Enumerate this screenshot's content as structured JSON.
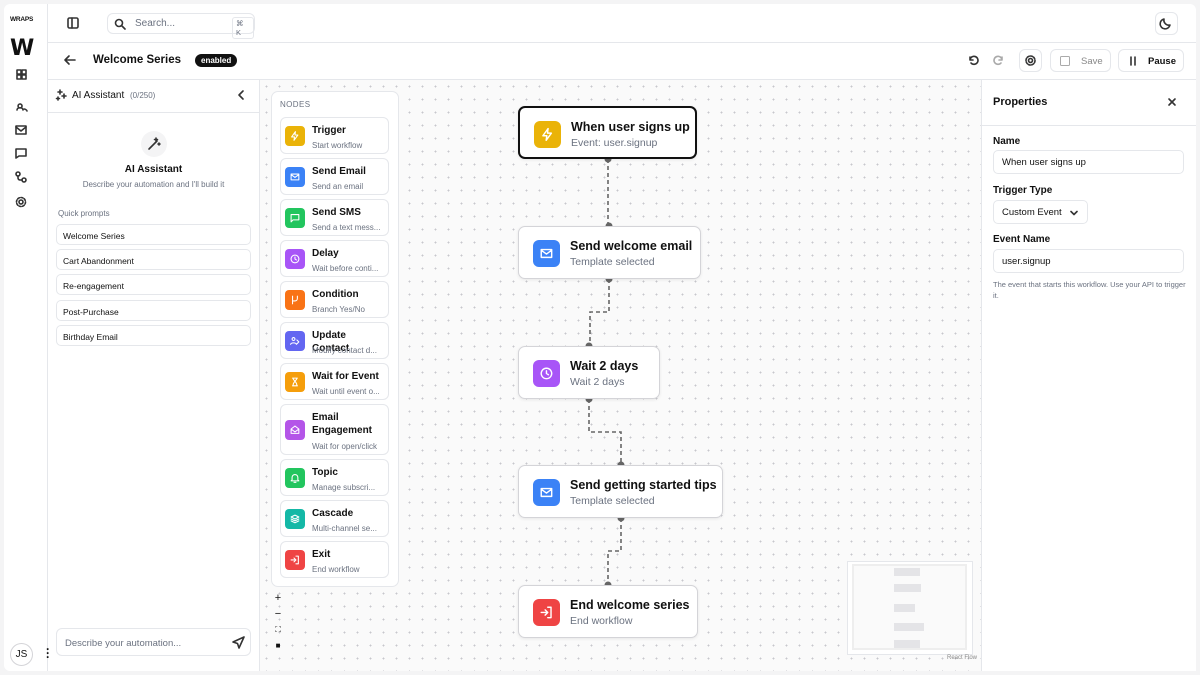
{
  "brand": {
    "logo_text": "WRAPS",
    "logo_mark": "W"
  },
  "search": {
    "placeholder": "Search...",
    "shortcut": "⌘ K"
  },
  "header": {
    "title": "Welcome Series",
    "status": "enabled",
    "save": "Save",
    "pause": "Pause"
  },
  "ai_panel": {
    "title": "AI Assistant",
    "counter": "(0/250)",
    "heading": "AI Assistant",
    "description": "Describe your automation and I'll build it",
    "quick_prompts_label": "Quick prompts",
    "quick_prompts": [
      "Welcome Series",
      "Cart Abandonment",
      "Re-engagement",
      "Post-Purchase",
      "Birthday Email"
    ],
    "input_placeholder": "Describe your automation..."
  },
  "user": {
    "initials": "JS"
  },
  "palette": {
    "label": "NODES",
    "items": [
      {
        "title": "Trigger",
        "description": "Start workflow"
      },
      {
        "title": "Send Email",
        "description": "Send an email"
      },
      {
        "title": "Send SMS",
        "description": "Send a text mess..."
      },
      {
        "title": "Delay",
        "description": "Wait before conti..."
      },
      {
        "title": "Condition",
        "description": "Branch Yes/No"
      },
      {
        "title": "Update Contact",
        "description": "Modify contact d..."
      },
      {
        "title": "Wait for Event",
        "description": "Wait until event o..."
      },
      {
        "title": "Email Engagement",
        "description": "Wait for open/click"
      },
      {
        "title": "Topic",
        "description": "Manage subscri..."
      },
      {
        "title": "Cascade",
        "description": "Multi-channel se..."
      },
      {
        "title": "Exit",
        "description": "End workflow"
      }
    ]
  },
  "workflow": {
    "nodes": [
      {
        "title": "When user signs up",
        "subtitle": "Event: user.signup"
      },
      {
        "title": "Send welcome email",
        "subtitle": "Template selected"
      },
      {
        "title": "Wait 2 days",
        "subtitle": "Wait 2 days"
      },
      {
        "title": "Send getting started tips",
        "subtitle": "Template selected"
      },
      {
        "title": "End welcome series",
        "subtitle": "End workflow"
      }
    ],
    "attribution": "React Flow"
  },
  "properties": {
    "title": "Properties",
    "name_label": "Name",
    "name_value": "When user signs up",
    "trigger_type_label": "Trigger Type",
    "trigger_type_value": "Custom Event",
    "event_name_label": "Event Name",
    "event_name_value": "user.signup",
    "help_text": "The event that starts this workflow. Use your API to trigger it."
  }
}
